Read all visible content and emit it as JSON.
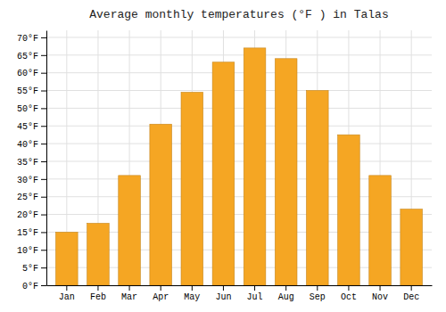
{
  "chart_data": {
    "type": "bar",
    "title": "Average monthly temperatures (°F ) in Talas",
    "categories": [
      "Jan",
      "Feb",
      "Mar",
      "Apr",
      "May",
      "Jun",
      "Jul",
      "Aug",
      "Sep",
      "Oct",
      "Nov",
      "Dec"
    ],
    "values": [
      15,
      17.5,
      31,
      45.5,
      54.5,
      63,
      67,
      64,
      55,
      42.5,
      31,
      21.5
    ],
    "color": "#F5A623",
    "ylim": [
      0,
      72
    ],
    "yticks": [
      {
        "value": 0,
        "label": "0°F"
      },
      {
        "value": 5,
        "label": "5°F"
      },
      {
        "value": 10,
        "label": "10°F"
      },
      {
        "value": 15,
        "label": "15°F"
      },
      {
        "value": 20,
        "label": "20°F"
      },
      {
        "value": 25,
        "label": "25°F"
      },
      {
        "value": 30,
        "label": "30°F"
      },
      {
        "value": 35,
        "label": "35°F"
      },
      {
        "value": 40,
        "label": "40°F"
      },
      {
        "value": 45,
        "label": "45°F"
      },
      {
        "value": 50,
        "label": "50°F"
      },
      {
        "value": 55,
        "label": "55°F"
      },
      {
        "value": 60,
        "label": "60°F"
      },
      {
        "value": 65,
        "label": "65°F"
      },
      {
        "value": 70,
        "label": "70°F"
      }
    ],
    "grid": true
  }
}
